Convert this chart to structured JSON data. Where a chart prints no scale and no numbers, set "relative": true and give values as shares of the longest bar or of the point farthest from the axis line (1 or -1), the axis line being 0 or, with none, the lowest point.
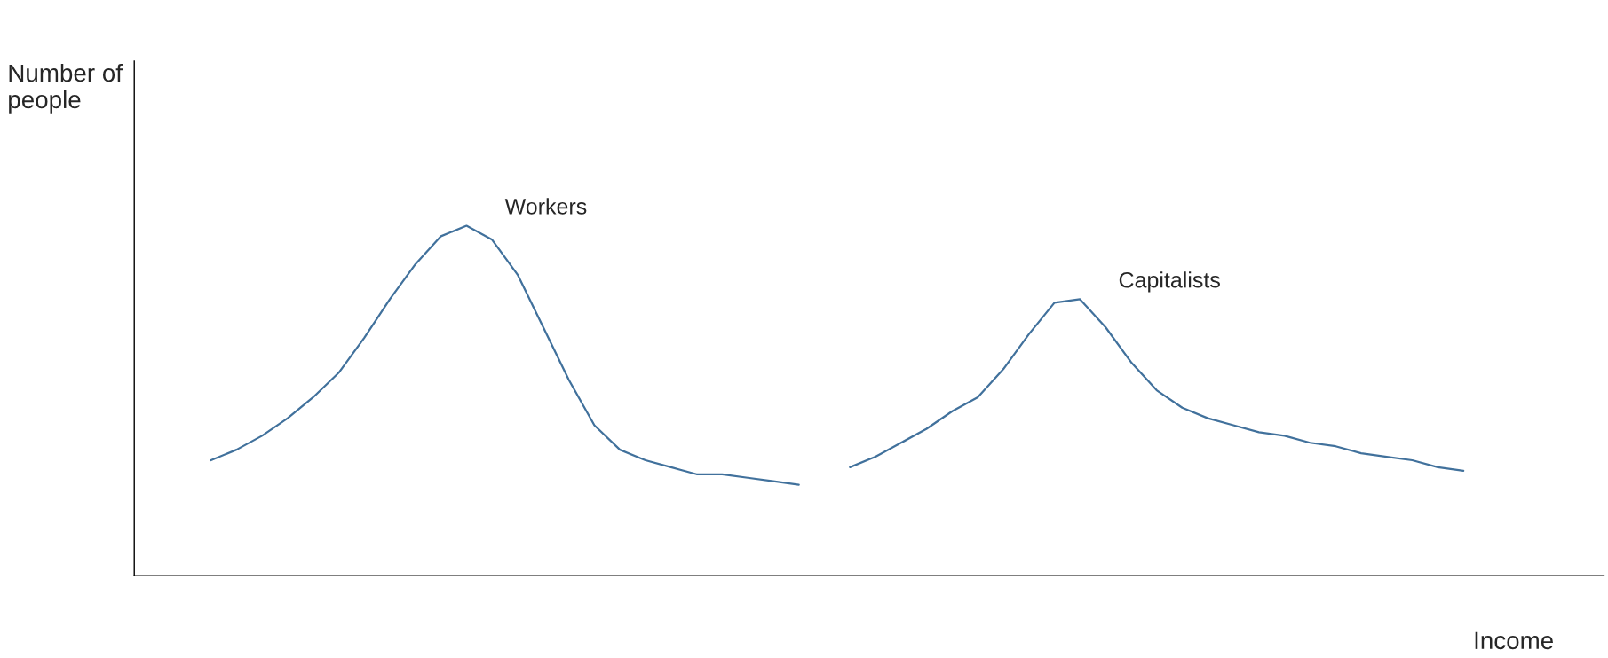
{
  "chart_data": {
    "type": "line",
    "relative": true,
    "xlabel": "Income",
    "ylabel": "Number of\npeople",
    "categories": [
      null,
      null,
      null,
      null,
      null,
      null,
      null,
      null,
      null,
      null,
      null,
      null,
      null,
      null,
      null,
      null,
      null,
      null,
      null,
      null,
      null,
      null,
      null,
      null,
      null,
      null,
      null,
      null,
      null,
      null,
      null,
      null,
      null,
      null,
      null,
      null,
      null,
      null,
      null,
      null,
      null,
      null,
      null,
      null,
      null,
      null,
      null,
      null,
      null,
      null,
      null,
      null,
      null,
      null,
      null,
      null,
      null,
      null
    ],
    "series": [
      {
        "name": "Workers",
        "color": "#41719c",
        "values": [
          null,
          null,
          null,
          0.33,
          0.36,
          0.4,
          0.45,
          0.51,
          0.58,
          0.68,
          0.79,
          0.89,
          0.97,
          1.0,
          0.96,
          0.86,
          0.71,
          0.56,
          0.43,
          0.36,
          0.33,
          0.31,
          0.29,
          0.29,
          0.28,
          0.27,
          0.26,
          null,
          null,
          null,
          null,
          null,
          null,
          null,
          null,
          null,
          null,
          null,
          null,
          null,
          null,
          null,
          null,
          null,
          null,
          null,
          null,
          null,
          null,
          null,
          null,
          null,
          null,
          null,
          null,
          null,
          null,
          null
        ]
      },
      {
        "name": "Capitalists",
        "color": "#41719c",
        "values": [
          null,
          null,
          null,
          null,
          null,
          null,
          null,
          null,
          null,
          null,
          null,
          null,
          null,
          null,
          null,
          null,
          null,
          null,
          null,
          null,
          null,
          null,
          null,
          null,
          null,
          null,
          null,
          null,
          0.31,
          0.34,
          0.38,
          0.42,
          0.47,
          0.51,
          0.59,
          0.69,
          0.78,
          0.79,
          0.71,
          0.61,
          0.53,
          0.48,
          0.45,
          0.43,
          0.41,
          0.4,
          0.38,
          0.37,
          0.35,
          0.34,
          0.33,
          0.31,
          0.3,
          null,
          null,
          null,
          null,
          null
        ]
      }
    ]
  }
}
